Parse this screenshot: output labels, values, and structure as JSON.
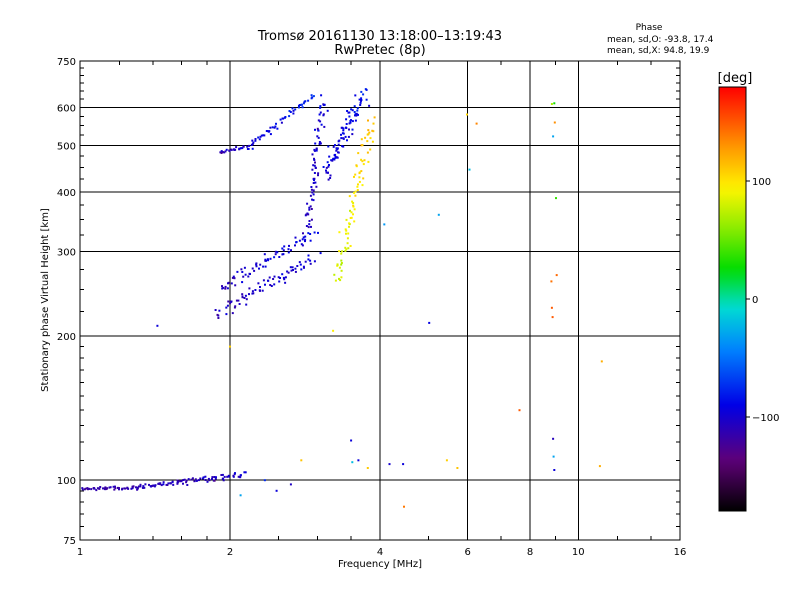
{
  "chart_data": {
    "type": "scatter",
    "title": "Tromsø 20161130 13:18:00–13:19:43",
    "subtitle": "RwPretec (8p)",
    "xlabel": "Frequency [MHz]",
    "ylabel": "Stationary phase Virtual Height [km]",
    "x_scale": "log",
    "y_scale": "log",
    "xlim": [
      1,
      16
    ],
    "ylim": [
      75,
      750
    ],
    "grid": true,
    "x_ticks": [
      {
        "value": 1,
        "label": "1"
      },
      {
        "value": 2,
        "label": "2"
      },
      {
        "value": 4,
        "label": "4"
      },
      {
        "value": 6,
        "label": "6"
      },
      {
        "value": 8,
        "label": "8"
      },
      {
        "value": 10,
        "label": "10"
      },
      {
        "value": 16,
        "label": "16"
      }
    ],
    "y_ticks": [
      {
        "value": 75,
        "label": "75"
      },
      {
        "value": 100,
        "label": "100"
      },
      {
        "value": 200,
        "label": "200"
      },
      {
        "value": 300,
        "label": "300"
      },
      {
        "value": 400,
        "label": "400"
      },
      {
        "value": 500,
        "label": "500"
      },
      {
        "value": 600,
        "label": "600"
      },
      {
        "value": 750,
        "label": "750"
      }
    ],
    "phase_box": {
      "title": "Phase",
      "line1": "mean, sd,O: -93.8, 17.4",
      "line2": "mean, sd,X: 94.8, 19.9"
    },
    "colorbar": {
      "unit": "[deg]",
      "min": -180,
      "max": 180,
      "ticks": [
        {
          "value": 100,
          "label": "100"
        },
        {
          "value": 0,
          "label": "0"
        },
        {
          "value": -100,
          "label": "−100"
        }
      ]
    },
    "segments": [
      {
        "name": "",
        "x_start": 1.0,
        "x_end": 1.27,
        "y_start": 96.0,
        "y_end": 96.3,
        "phase_start": -118,
        "phase_end": -112,
        "count": 45,
        "x_jitter": 0.008,
        "y_jitter": 0.0045
      },
      {
        "name": "",
        "x_start": 1.27,
        "x_end": 1.55,
        "y_start": 96.3,
        "y_end": 98.8,
        "phase_start": -112,
        "phase_end": -105,
        "count": 40,
        "x_jitter": 0.01,
        "y_jitter": 0.006
      },
      {
        "name": "",
        "x_start": 1.55,
        "x_end": 2.14,
        "y_start": 98.8,
        "y_end": 102.5,
        "phase_start": -110,
        "phase_end": -100,
        "count": 55,
        "x_jitter": 0.012,
        "y_jitter": 0.009
      },
      {
        "name": "",
        "x_start": 1.9,
        "x_end": 2.2,
        "y_start": 484,
        "y_end": 497,
        "phase_start": -112,
        "phase_end": -98,
        "count": 28,
        "x_jitter": 0.006,
        "y_jitter": 0.0045
      },
      {
        "name": "",
        "x_start": 2.2,
        "x_end": 2.95,
        "y_start": 497,
        "y_end": 639,
        "phase_start": -96,
        "phase_end": -78,
        "count": 50,
        "x_jitter": 0.008,
        "y_jitter": 0.01
      },
      {
        "name": "",
        "x_start": 1.92,
        "x_end": 2.95,
        "y_start": 252,
        "y_end": 328,
        "phase_start": -110,
        "phase_end": -88,
        "count": 70,
        "x_jitter": 0.01,
        "y_jitter": 0.014
      },
      {
        "name": "",
        "x_start": 1.88,
        "x_end": 2.95,
        "y_start": 222,
        "y_end": 292,
        "phase_start": -108,
        "phase_end": -95,
        "count": 75,
        "x_jitter": 0.01,
        "y_jitter": 0.015
      },
      {
        "name": "",
        "x_start": 2.85,
        "x_end": 3.08,
        "y_start": 332,
        "y_end": 625,
        "phase_start": -110,
        "phase_end": -92,
        "count": 70,
        "x_jitter": 0.009,
        "y_jitter": 0.012
      },
      {
        "name": "",
        "x_start": 3.08,
        "x_end": 3.72,
        "y_start": 430,
        "y_end": 640,
        "phase_start": -100,
        "phase_end": -86,
        "count": 95,
        "x_jitter": 0.015,
        "y_jitter": 0.02
      },
      {
        "name": "",
        "x_start": 3.28,
        "x_end": 3.86,
        "y_start": 258,
        "y_end": 570,
        "phase_start": 76,
        "phase_end": 115,
        "count": 85,
        "x_jitter": 0.014,
        "y_jitter": 0.018
      }
    ],
    "points": [
      {
        "x": 1.43,
        "y": 210,
        "phase": -96
      },
      {
        "x": 2.0,
        "y": 190,
        "phase": 108
      },
      {
        "x": 2.1,
        "y": 93,
        "phase": -30
      },
      {
        "x": 2.35,
        "y": 100,
        "phase": -75
      },
      {
        "x": 2.48,
        "y": 95,
        "phase": -95
      },
      {
        "x": 2.65,
        "y": 98,
        "phase": -105
      },
      {
        "x": 2.78,
        "y": 110,
        "phase": 112
      },
      {
        "x": 3.22,
        "y": 205,
        "phase": 96
      },
      {
        "x": 3.5,
        "y": 121,
        "phase": -95
      },
      {
        "x": 3.52,
        "y": 109,
        "phase": -20
      },
      {
        "x": 3.62,
        "y": 110,
        "phase": -94
      },
      {
        "x": 3.78,
        "y": 106,
        "phase": 110
      },
      {
        "x": 4.08,
        "y": 342,
        "phase": -35
      },
      {
        "x": 4.18,
        "y": 108,
        "phase": -100
      },
      {
        "x": 4.45,
        "y": 108,
        "phase": -95
      },
      {
        "x": 4.47,
        "y": 88,
        "phase": 140
      },
      {
        "x": 5.02,
        "y": 213,
        "phase": -92
      },
      {
        "x": 5.25,
        "y": 358,
        "phase": -30
      },
      {
        "x": 5.45,
        "y": 110,
        "phase": 108
      },
      {
        "x": 5.72,
        "y": 106,
        "phase": 112
      },
      {
        "x": 5.98,
        "y": 580,
        "phase": 105
      },
      {
        "x": 6.05,
        "y": 445,
        "phase": -20
      },
      {
        "x": 6.25,
        "y": 555,
        "phase": 135
      },
      {
        "x": 7.62,
        "y": 140,
        "phase": 150
      },
      {
        "x": 8.85,
        "y": 610,
        "phase": 70
      },
      {
        "x": 8.95,
        "y": 612,
        "phase": 28
      },
      {
        "x": 8.9,
        "y": 522,
        "phase": -30
      },
      {
        "x": 8.97,
        "y": 558,
        "phase": 132
      },
      {
        "x": 9.02,
        "y": 388,
        "phase": 38
      },
      {
        "x": 8.83,
        "y": 260,
        "phase": 142
      },
      {
        "x": 8.85,
        "y": 229,
        "phase": 150
      },
      {
        "x": 8.88,
        "y": 219,
        "phase": 150
      },
      {
        "x": 9.05,
        "y": 268,
        "phase": 145
      },
      {
        "x": 8.9,
        "y": 122,
        "phase": -108
      },
      {
        "x": 8.92,
        "y": 112,
        "phase": -30
      },
      {
        "x": 8.95,
        "y": 105,
        "phase": -95
      },
      {
        "x": 11.15,
        "y": 177,
        "phase": 120
      },
      {
        "x": 11.05,
        "y": 107,
        "phase": 120
      }
    ]
  }
}
